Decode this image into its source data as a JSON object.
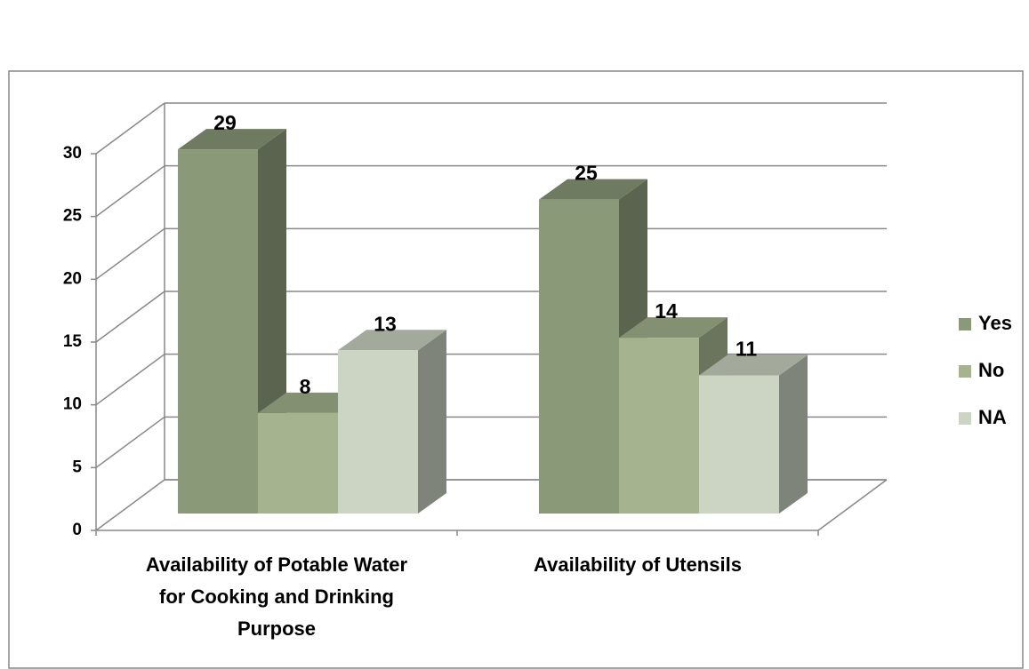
{
  "chart_data": {
    "type": "bar3d",
    "categories": [
      "Availability of Potable Water for Cooking and Drinking Purpose",
      "Availability of Utensils"
    ],
    "series": [
      {
        "name": "Yes",
        "color": "#8a9a78",
        "values": [
          29,
          25
        ]
      },
      {
        "name": "No",
        "color": "#a5b48f",
        "values": [
          8,
          14
        ]
      },
      {
        "name": "NA",
        "color": "#ccd5c3",
        "values": [
          13,
          11
        ]
      }
    ],
    "ylim": [
      0,
      30
    ],
    "yticks": [
      0,
      5,
      10,
      15,
      20,
      25,
      30
    ],
    "grid": true,
    "legend": "right"
  }
}
